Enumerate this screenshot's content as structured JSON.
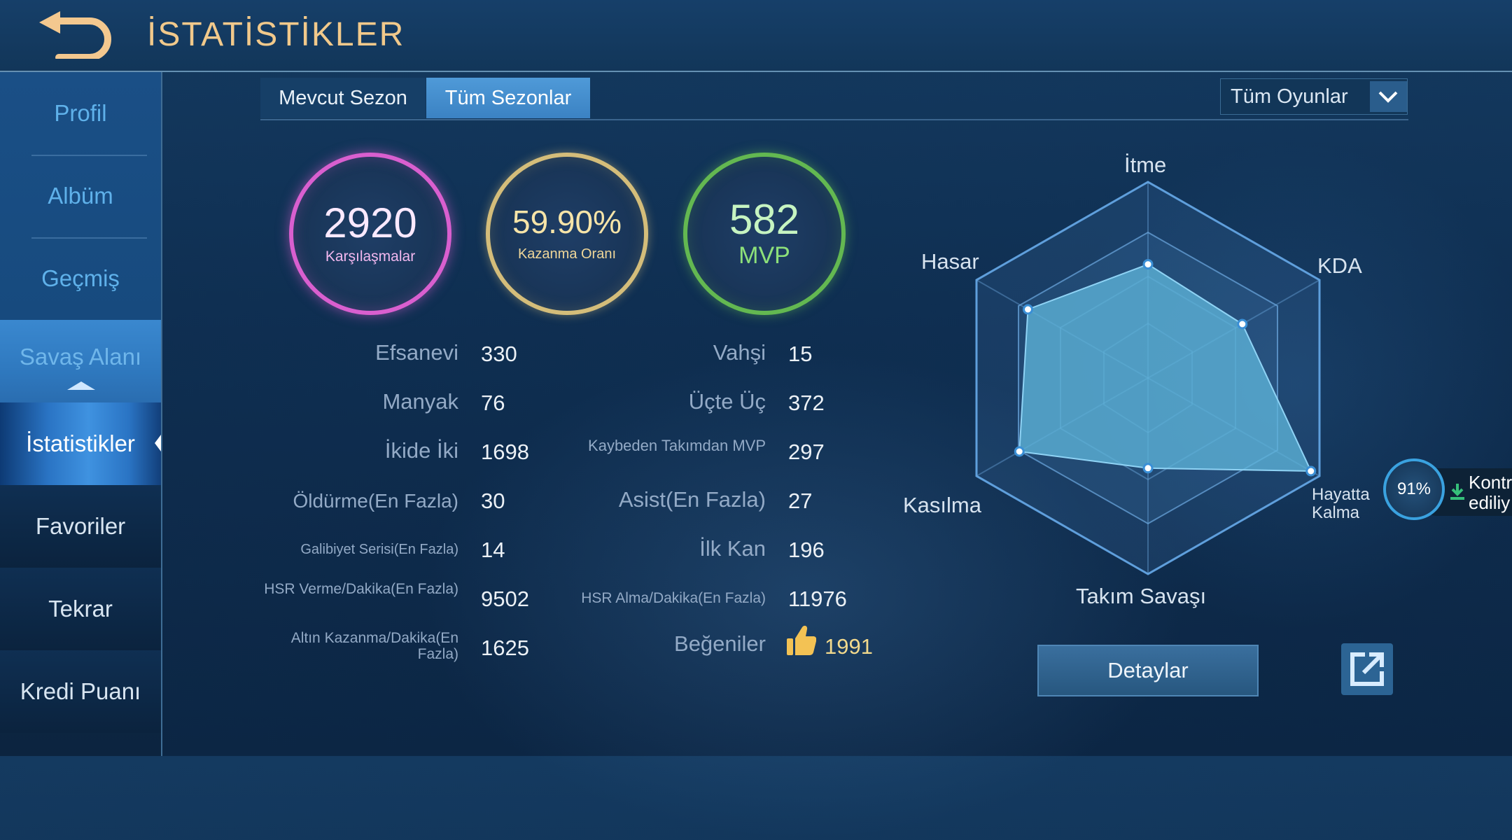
{
  "header": {
    "title": "İSTATİSTİKLER"
  },
  "sidebar": {
    "items": [
      {
        "label": "Profil"
      },
      {
        "label": "Albüm"
      },
      {
        "label": "Geçmiş"
      },
      {
        "label": "Savaş Alanı"
      },
      {
        "label": "İstatistikler"
      },
      {
        "label": "Favoriler"
      },
      {
        "label": "Tekrar"
      },
      {
        "label": "Kredi Puanı"
      }
    ]
  },
  "tabs": [
    {
      "label": "Mevcut Sezon"
    },
    {
      "label": "Tüm Sezonlar"
    }
  ],
  "filter": {
    "selected": "Tüm Oyunlar"
  },
  "summary": {
    "matches": {
      "value": "2920",
      "label": "Karşılaşmalar"
    },
    "winrate": {
      "value": "59.90%",
      "label": "Kazanma Oranı"
    },
    "mvp": {
      "value": "582",
      "label": "MVP"
    }
  },
  "stats": [
    {
      "label": "Efsanevi",
      "value": "330"
    },
    {
      "label": "Vahşi",
      "value": "15"
    },
    {
      "label": "Manyak",
      "value": "76"
    },
    {
      "label": "Üçte Üç",
      "value": "372"
    },
    {
      "label": "İkide İki",
      "value": "1698"
    },
    {
      "label": "Kaybeden Takımdan MVP",
      "value": "297"
    },
    {
      "label": "Öldürme(En Fazla)",
      "value": "30"
    },
    {
      "label": "Asist(En Fazla)",
      "value": "27"
    },
    {
      "label": "Galibiyet Serisi(En Fazla)",
      "value": "14"
    },
    {
      "label": "İlk Kan",
      "value": "196"
    },
    {
      "label": "HSR Verme/Dakika(En Fazla)",
      "value": "9502"
    },
    {
      "label": "HSR Alma/Dakika(En Fazla)",
      "value": "11976"
    },
    {
      "label": "Altın Kazanma/Dakika(En Fazla)",
      "value": "1625"
    },
    {
      "label": "Beğeniler",
      "value": "1991"
    }
  ],
  "radar": {
    "labels": [
      "İtme",
      "KDA",
      "Hayatta Kalma",
      "Takım Savaşı",
      "Kasılma",
      "Hasar"
    ],
    "label_lines": {
      "survival_1": "Hayatta",
      "survival_2": "Kalma"
    },
    "values": [
      0.58,
      0.55,
      0.95,
      0.46,
      0.75,
      0.7
    ]
  },
  "buttons": {
    "details": "Detaylar"
  },
  "widget": {
    "percent": "91%",
    "line1": "Kontr",
    "line2": "ediliy"
  },
  "colors": {
    "accent": "#4f9ad8",
    "title": "#f1c98b",
    "radar_fill": "#5db4d8"
  }
}
